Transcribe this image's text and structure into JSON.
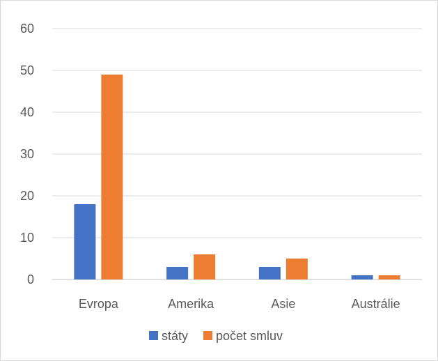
{
  "chart_data": {
    "type": "bar",
    "categories": [
      "Evropa",
      "Amerika",
      "Asie",
      "Austrálie"
    ],
    "series": [
      {
        "name": "státy",
        "values": [
          18,
          3,
          3,
          1
        ],
        "color": "#4472c4"
      },
      {
        "name": "počet smluv",
        "values": [
          49,
          6,
          5,
          1
        ],
        "color": "#ed7d31"
      }
    ],
    "ylim": [
      0,
      60
    ],
    "yticks": [
      "0",
      "10",
      "20",
      "30",
      "40",
      "50",
      "60"
    ],
    "grid": true,
    "legend_position": "bottom",
    "title": "",
    "xlabel": "",
    "ylabel": ""
  }
}
